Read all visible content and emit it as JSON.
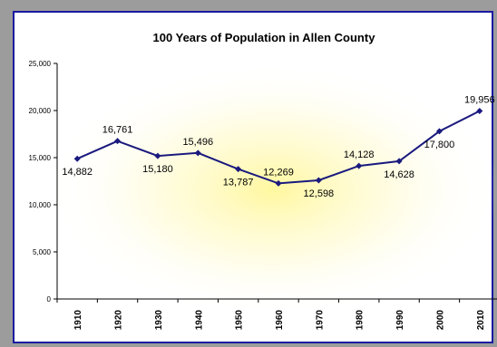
{
  "chart_data": {
    "type": "line",
    "title": "100 Years of Population in Allen County",
    "xlabel": "",
    "ylabel": "",
    "categories": [
      "1910",
      "1920",
      "1930",
      "1940",
      "1950",
      "1960",
      "1970",
      "1980",
      "1990",
      "2000",
      "2010"
    ],
    "series": [
      {
        "values": [
          14882,
          16761,
          15180,
          15496,
          13787,
          12269,
          12598,
          14128,
          14628,
          17800,
          19956
        ]
      }
    ],
    "data_labels": [
      "14,882",
      "16,761",
      "15,180",
      "15,496",
      "13,787",
      "12,269",
      "12,598",
      "14,128",
      "14,628",
      "17,800",
      "19,956"
    ],
    "ylim": [
      0,
      25000
    ],
    "yticks": [
      0,
      5000,
      10000,
      15000,
      20000,
      25000
    ],
    "ytick_labels": [
      "0",
      "5,000",
      "10,000",
      "15,000",
      "20,000",
      "25,000"
    ],
    "grid": false,
    "legend": "none",
    "colors": {
      "line": "#1a1a7e",
      "marker": "#1a1a7e",
      "frame_border": "#1a1aa0",
      "background": "#9c9c9c",
      "glow": "#fff79a"
    }
  }
}
